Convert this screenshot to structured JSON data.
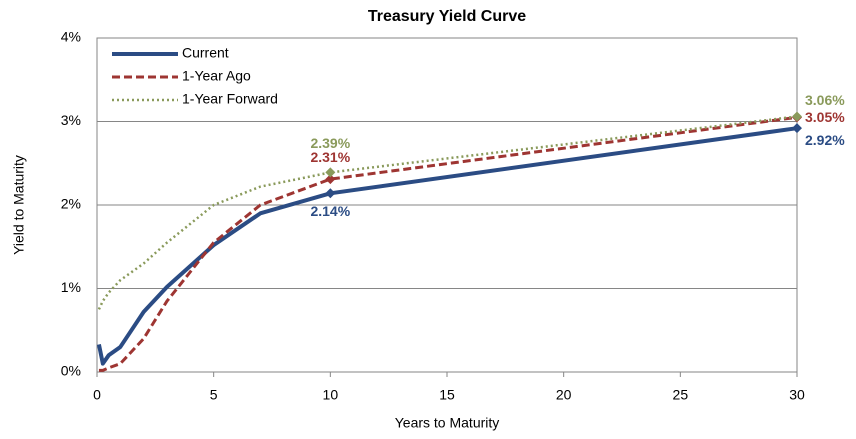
{
  "chart_data": {
    "type": "line",
    "title": "Treasury Yield Curve",
    "x_label": "Years to Maturity",
    "y_label": "Yield to Maturity",
    "xlim": [
      0,
      30
    ],
    "xticks": [
      0,
      5,
      10,
      15,
      20,
      25,
      30
    ],
    "ylim": [
      0,
      4
    ],
    "yticks": [
      {
        "value": 0,
        "label": "0%"
      },
      {
        "value": 1,
        "label": "1%"
      },
      {
        "value": 2,
        "label": "2%"
      },
      {
        "value": 3,
        "label": "3%"
      },
      {
        "value": 4,
        "label": "4%"
      }
    ],
    "grid": true,
    "legend": "top-left",
    "series": [
      {
        "name": "Current",
        "color": "#2b4c84",
        "dash": "solid",
        "x": [
          0.083,
          0.25,
          0.5,
          1,
          2,
          3,
          5,
          7,
          10,
          30
        ],
        "values": [
          0.33,
          0.1,
          0.2,
          0.3,
          0.72,
          1.02,
          1.52,
          1.9,
          2.14,
          2.92
        ],
        "value_labels": [
          null,
          null,
          null,
          null,
          null,
          null,
          null,
          null,
          "2.14%",
          "2.92%"
        ]
      },
      {
        "name": "1-Year Ago",
        "color": "#9e3532",
        "dash": "dashed",
        "x": [
          0.083,
          0.25,
          0.5,
          1,
          2,
          3,
          5,
          7,
          10,
          30
        ],
        "values": [
          0.02,
          0.02,
          0.05,
          0.1,
          0.4,
          0.85,
          1.55,
          2.0,
          2.31,
          3.05
        ],
        "value_labels": [
          null,
          null,
          null,
          null,
          null,
          null,
          null,
          null,
          "2.31%",
          "3.05%"
        ]
      },
      {
        "name": "1-Year Forward",
        "color": "#8a9a5b",
        "dash": "dotted",
        "x": [
          0.083,
          0.25,
          0.5,
          1,
          2,
          3,
          5,
          7,
          10,
          30
        ],
        "values": [
          0.75,
          0.85,
          0.95,
          1.1,
          1.3,
          1.55,
          2.0,
          2.22,
          2.39,
          3.06
        ],
        "value_labels": [
          null,
          null,
          null,
          null,
          null,
          null,
          null,
          null,
          "2.39%",
          "3.06%"
        ]
      }
    ]
  }
}
